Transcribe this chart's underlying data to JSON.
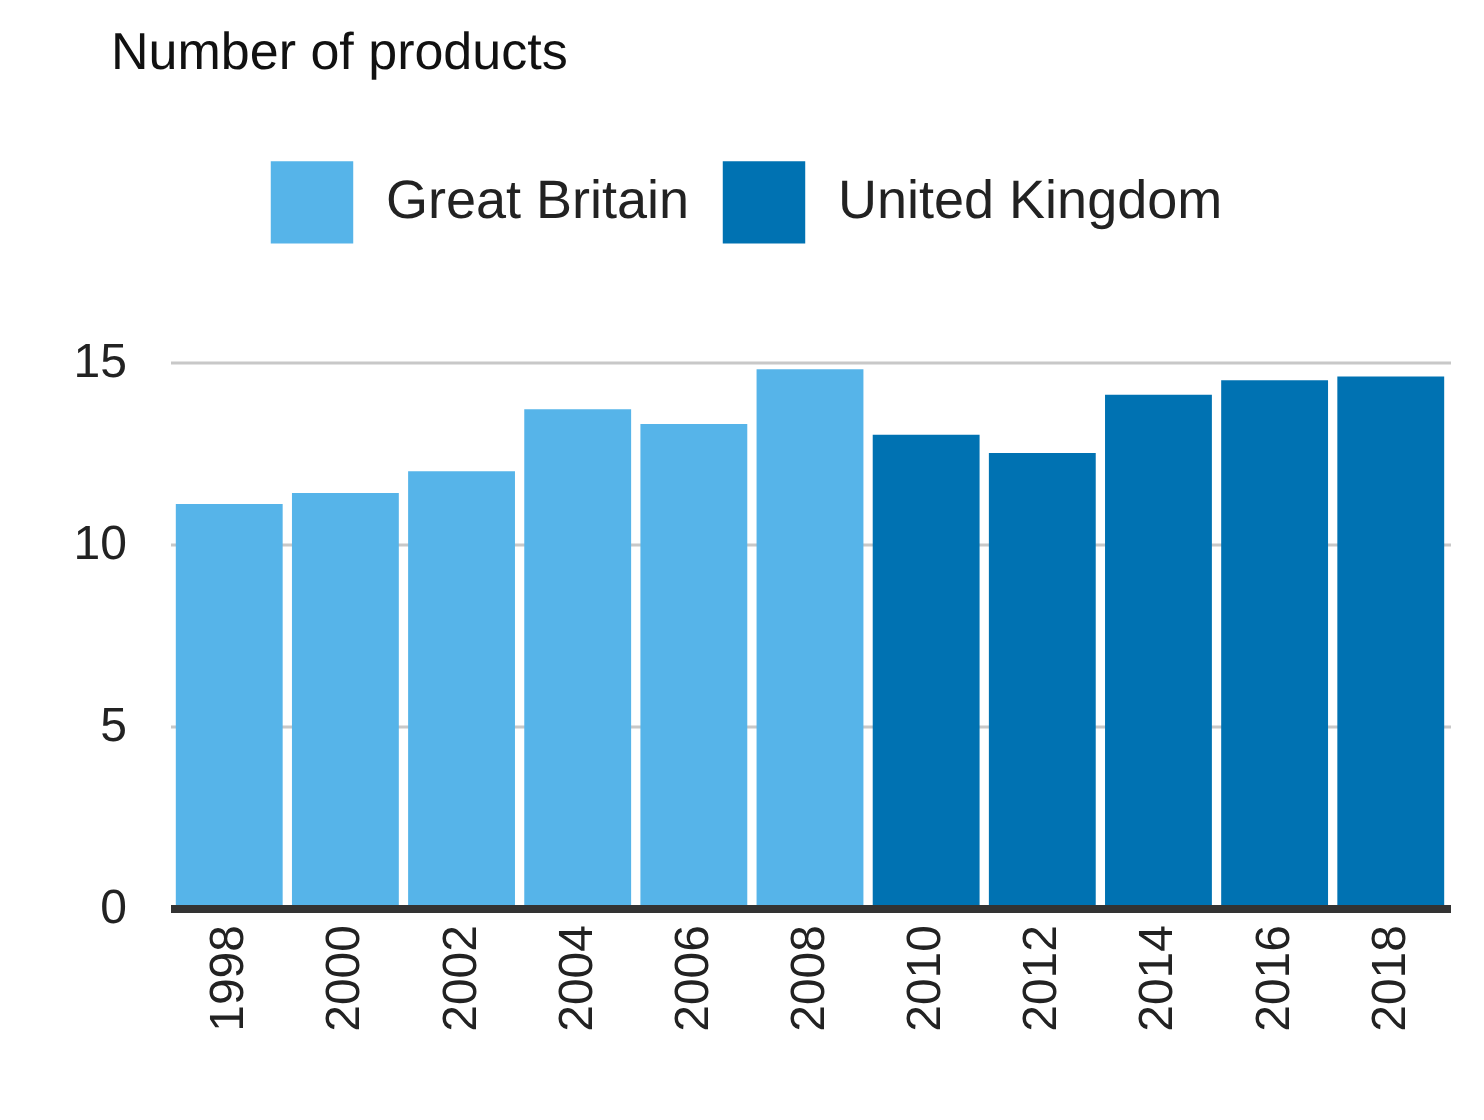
{
  "chart_data": {
    "type": "bar",
    "ylabel": "Number of products",
    "categories": [
      "1998",
      "2000",
      "2002",
      "2004",
      "2006",
      "2008",
      "2010",
      "2012",
      "2014",
      "2016",
      "2018"
    ],
    "series": [
      {
        "name": "Great Britain",
        "color": "#56b4e9",
        "values": [
          11.1,
          11.4,
          12.0,
          13.7,
          13.3,
          14.8,
          null,
          null,
          null,
          null,
          null
        ]
      },
      {
        "name": "United Kingdom",
        "color": "#0072b2",
        "values": [
          null,
          null,
          null,
          null,
          null,
          null,
          13.0,
          12.5,
          14.1,
          14.5,
          14.6
        ]
      }
    ],
    "ylim": [
      0,
      15
    ],
    "yticks": [
      0,
      5,
      10,
      15
    ],
    "grid": "y",
    "legend": "top"
  }
}
